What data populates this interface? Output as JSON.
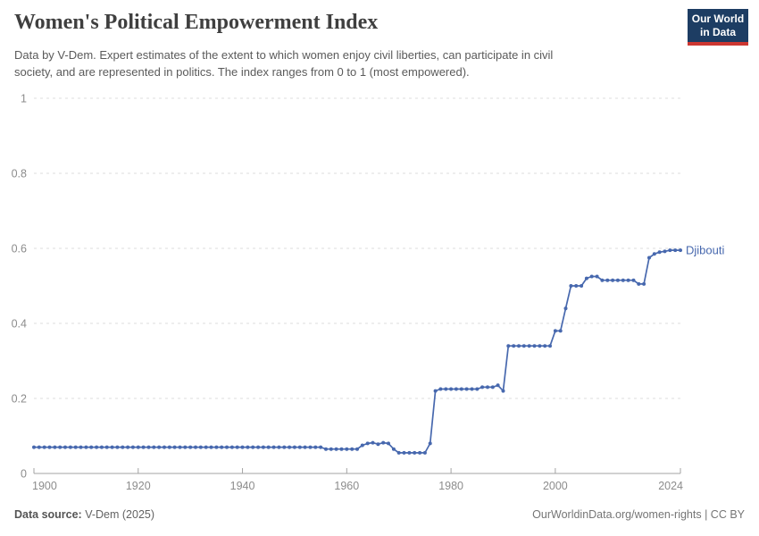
{
  "header": {
    "title": "Women's Political Empowerment Index",
    "subtitle_lines": [
      "Data by V-Dem. Expert estimates of the extent to which women enjoy civil liberties, can participate in civil",
      "society, and are represented in politics. The index ranges from 0 to 1 (most empowered)."
    ],
    "logo": {
      "line1": "Our World",
      "line2": "in Data",
      "bg_color": "#1d3d63",
      "stripe_color": "#cd3731"
    }
  },
  "chart_data": {
    "type": "line",
    "title": "Women's Political Empowerment Index",
    "xlabel": "",
    "ylabel": "",
    "xlim": [
      1900,
      2024
    ],
    "ylim": [
      0,
      1
    ],
    "x_ticks": [
      1900,
      1920,
      1940,
      1960,
      1980,
      2000,
      2024
    ],
    "y_ticks": [
      0,
      0.2,
      0.4,
      0.6,
      0.8,
      1
    ],
    "grid": "horizontal-dashed",
    "legend_position": "right-end-of-line",
    "series": [
      {
        "name": "Djibouti",
        "color": "#4768ae",
        "points": [
          [
            1900,
            0.07
          ],
          [
            1901,
            0.07
          ],
          [
            1902,
            0.07
          ],
          [
            1903,
            0.07
          ],
          [
            1904,
            0.07
          ],
          [
            1905,
            0.07
          ],
          [
            1906,
            0.07
          ],
          [
            1907,
            0.07
          ],
          [
            1908,
            0.07
          ],
          [
            1909,
            0.07
          ],
          [
            1910,
            0.07
          ],
          [
            1911,
            0.07
          ],
          [
            1912,
            0.07
          ],
          [
            1913,
            0.07
          ],
          [
            1914,
            0.07
          ],
          [
            1915,
            0.07
          ],
          [
            1916,
            0.07
          ],
          [
            1917,
            0.07
          ],
          [
            1918,
            0.07
          ],
          [
            1919,
            0.07
          ],
          [
            1920,
            0.07
          ],
          [
            1921,
            0.07
          ],
          [
            1922,
            0.07
          ],
          [
            1923,
            0.07
          ],
          [
            1924,
            0.07
          ],
          [
            1925,
            0.07
          ],
          [
            1926,
            0.07
          ],
          [
            1927,
            0.07
          ],
          [
            1928,
            0.07
          ],
          [
            1929,
            0.07
          ],
          [
            1930,
            0.07
          ],
          [
            1931,
            0.07
          ],
          [
            1932,
            0.07
          ],
          [
            1933,
            0.07
          ],
          [
            1934,
            0.07
          ],
          [
            1935,
            0.07
          ],
          [
            1936,
            0.07
          ],
          [
            1937,
            0.07
          ],
          [
            1938,
            0.07
          ],
          [
            1939,
            0.07
          ],
          [
            1940,
            0.07
          ],
          [
            1941,
            0.07
          ],
          [
            1942,
            0.07
          ],
          [
            1943,
            0.07
          ],
          [
            1944,
            0.07
          ],
          [
            1945,
            0.07
          ],
          [
            1946,
            0.07
          ],
          [
            1947,
            0.07
          ],
          [
            1948,
            0.07
          ],
          [
            1949,
            0.07
          ],
          [
            1950,
            0.07
          ],
          [
            1951,
            0.07
          ],
          [
            1952,
            0.07
          ],
          [
            1953,
            0.07
          ],
          [
            1954,
            0.07
          ],
          [
            1955,
            0.07
          ],
          [
            1956,
            0.065
          ],
          [
            1957,
            0.065
          ],
          [
            1958,
            0.065
          ],
          [
            1959,
            0.065
          ],
          [
            1960,
            0.065
          ],
          [
            1961,
            0.065
          ],
          [
            1962,
            0.065
          ],
          [
            1963,
            0.075
          ],
          [
            1964,
            0.08
          ],
          [
            1965,
            0.082
          ],
          [
            1966,
            0.078
          ],
          [
            1967,
            0.082
          ],
          [
            1968,
            0.08
          ],
          [
            1969,
            0.065
          ],
          [
            1970,
            0.055
          ],
          [
            1971,
            0.055
          ],
          [
            1972,
            0.055
          ],
          [
            1973,
            0.055
          ],
          [
            1974,
            0.055
          ],
          [
            1975,
            0.055
          ],
          [
            1976,
            0.08
          ],
          [
            1977,
            0.22
          ],
          [
            1978,
            0.225
          ],
          [
            1979,
            0.225
          ],
          [
            1980,
            0.225
          ],
          [
            1981,
            0.225
          ],
          [
            1982,
            0.225
          ],
          [
            1983,
            0.225
          ],
          [
            1984,
            0.225
          ],
          [
            1985,
            0.225
          ],
          [
            1986,
            0.23
          ],
          [
            1987,
            0.23
          ],
          [
            1988,
            0.23
          ],
          [
            1989,
            0.235
          ],
          [
            1990,
            0.22
          ],
          [
            1991,
            0.34
          ],
          [
            1992,
            0.34
          ],
          [
            1993,
            0.34
          ],
          [
            1994,
            0.34
          ],
          [
            1995,
            0.34
          ],
          [
            1996,
            0.34
          ],
          [
            1997,
            0.34
          ],
          [
            1998,
            0.34
          ],
          [
            1999,
            0.34
          ],
          [
            2000,
            0.38
          ],
          [
            2001,
            0.38
          ],
          [
            2002,
            0.44
          ],
          [
            2003,
            0.5
          ],
          [
            2004,
            0.5
          ],
          [
            2005,
            0.5
          ],
          [
            2006,
            0.52
          ],
          [
            2007,
            0.525
          ],
          [
            2008,
            0.525
          ],
          [
            2009,
            0.515
          ],
          [
            2010,
            0.515
          ],
          [
            2011,
            0.515
          ],
          [
            2012,
            0.515
          ],
          [
            2013,
            0.515
          ],
          [
            2014,
            0.515
          ],
          [
            2015,
            0.515
          ],
          [
            2016,
            0.505
          ],
          [
            2017,
            0.505
          ],
          [
            2018,
            0.575
          ],
          [
            2019,
            0.585
          ],
          [
            2020,
            0.59
          ],
          [
            2021,
            0.592
          ],
          [
            2022,
            0.595
          ],
          [
            2023,
            0.595
          ],
          [
            2024,
            0.595
          ]
        ]
      }
    ]
  },
  "footer": {
    "source_label": "Data source:",
    "source_value": "V-Dem (2025)",
    "credit": "OurWorldinData.org/women-rights | CC BY"
  }
}
